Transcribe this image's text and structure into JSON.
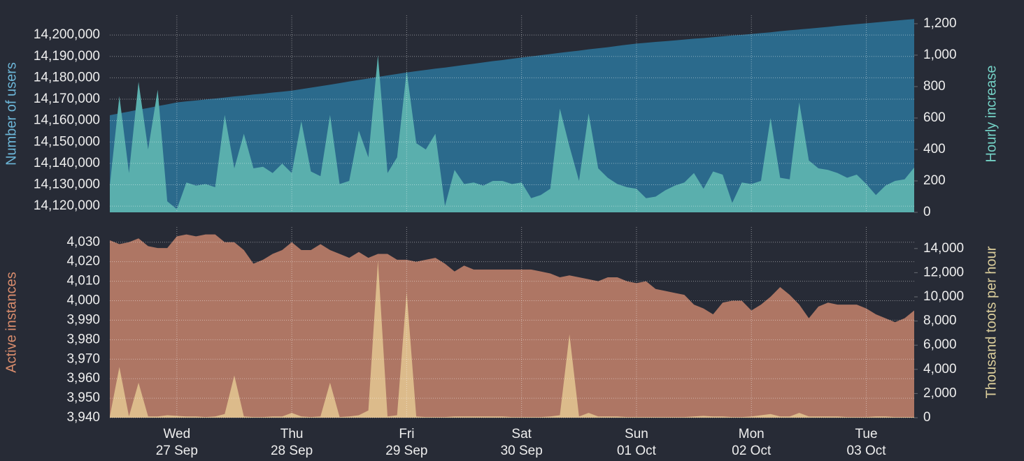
{
  "chart_data": [
    {
      "type": "area",
      "ylabel": "Number of users",
      "y2label": "Hourly increase",
      "ylim": [
        14117100,
        14209200
      ],
      "yticks": [
        {
          "value": 14120000,
          "label": "14,120,000"
        },
        {
          "value": 14130000,
          "label": "14,130,000"
        },
        {
          "value": 14140000,
          "label": "14,140,000"
        },
        {
          "value": 14150000,
          "label": "14,150,000"
        },
        {
          "value": 14160000,
          "label": "14,160,000"
        },
        {
          "value": 14170000,
          "label": "14,170,000"
        },
        {
          "value": 14180000,
          "label": "14,180,000"
        },
        {
          "value": 14190000,
          "label": "14,190,000"
        },
        {
          "value": 14200000,
          "label": "14,200,000"
        }
      ],
      "y2lim": [
        0,
        1253
      ],
      "y2ticks": [
        0,
        200,
        400,
        600,
        800,
        {
          "value": 1000,
          "label": "1,000"
        },
        {
          "value": 1200,
          "label": "1,200"
        }
      ],
      "grid": true,
      "ylabel_color": "#6cb6d8",
      "y2label_color": "#74d2c6",
      "series": [
        {
          "color": "#2b6a8c",
          "axis": "y",
          "values": [
            14162500,
            14163400,
            14164200,
            14165100,
            14165900,
            14166800,
            14167600,
            14168500,
            14169000,
            14169400,
            14169900,
            14170300,
            14170800,
            14171300,
            14171700,
            14172200,
            14172600,
            14173100,
            14173500,
            14174000,
            14174700,
            14175400,
            14176100,
            14176800,
            14177500,
            14178300,
            14179000,
            14179700,
            14180400,
            14181100,
            14181800,
            14182500,
            14183100,
            14183700,
            14184300,
            14184800,
            14185400,
            14186000,
            14186600,
            14187200,
            14187800,
            14188300,
            14188900,
            14189500,
            14190000,
            14190600,
            14191100,
            14191700,
            14192200,
            14192700,
            14193300,
            14193800,
            14194300,
            14194900,
            14195500,
            14196000,
            14196400,
            14196800,
            14197100,
            14197500,
            14197900,
            14198300,
            14198600,
            14199000,
            14199400,
            14199800,
            14200100,
            14200500,
            14200900,
            14201300,
            14201800,
            14202200,
            14202600,
            14203000,
            14203400,
            14203800,
            14204300,
            14204700,
            14205100,
            14205500,
            14205900,
            14206300,
            14206700,
            14207100,
            14207500
          ]
        },
        {
          "color": "#5aafad",
          "axis": "y2",
          "values": [
            170,
            740,
            250,
            830,
            400,
            780,
            70,
            20,
            190,
            170,
            180,
            160,
            620,
            280,
            500,
            280,
            290,
            250,
            310,
            250,
            580,
            260,
            230,
            620,
            180,
            200,
            520,
            350,
            1000,
            250,
            350,
            900,
            440,
            400,
            500,
            40,
            270,
            180,
            190,
            170,
            200,
            200,
            180,
            190,
            90,
            110,
            150,
            660,
            420,
            200,
            630,
            280,
            220,
            180,
            160,
            150,
            90,
            100,
            140,
            170,
            190,
            250,
            150,
            260,
            240,
            60,
            190,
            180,
            200,
            600,
            220,
            210,
            700,
            330,
            280,
            270,
            250,
            220,
            240,
            180,
            110,
            170,
            200,
            210,
            285
          ]
        }
      ]
    },
    {
      "type": "area",
      "ylabel": "Active instances",
      "y2label": "Thousand toots per hour",
      "ylim": [
        3940,
        4037.8
      ],
      "yticks": [
        {
          "value": 3940,
          "label": "3,940"
        },
        {
          "value": 3950,
          "label": "3,950"
        },
        {
          "value": 3960,
          "label": "3,960"
        },
        {
          "value": 3970,
          "label": "3,970"
        },
        {
          "value": 3980,
          "label": "3,980"
        },
        {
          "value": 3990,
          "label": "3,990"
        },
        {
          "value": 4000,
          "label": "4,000"
        },
        {
          "value": 4010,
          "label": "4,010"
        },
        {
          "value": 4020,
          "label": "4,020"
        },
        {
          "value": 4030,
          "label": "4,030"
        }
      ],
      "y2lim": [
        0,
        15780
      ],
      "y2ticks": [
        0,
        {
          "value": 2000,
          "label": "2,000"
        },
        {
          "value": 4000,
          "label": "4,000"
        },
        {
          "value": 6000,
          "label": "6,000"
        },
        {
          "value": 8000,
          "label": "8,000"
        },
        {
          "value": 10000,
          "label": "10,000"
        },
        {
          "value": 12000,
          "label": "12,000"
        },
        {
          "value": 14000,
          "label": "14,000"
        }
      ],
      "grid": true,
      "ylabel_color": "#da8d6d",
      "y2label_color": "#dccf9c",
      "categories": [
        null,
        null,
        null,
        null,
        null,
        null,
        null,
        "Wed\n27 Sep",
        null,
        null,
        null,
        null,
        null,
        null,
        null,
        null,
        null,
        null,
        null,
        "Thu\n28 Sep",
        null,
        null,
        null,
        null,
        null,
        null,
        null,
        null,
        null,
        null,
        null,
        "Fri\n29 Sep",
        null,
        null,
        null,
        null,
        null,
        null,
        null,
        null,
        null,
        null,
        null,
        "Sat\n30 Sep",
        null,
        null,
        null,
        null,
        null,
        null,
        null,
        null,
        null,
        null,
        null,
        "Sun\n01 Oct",
        null,
        null,
        null,
        null,
        null,
        null,
        null,
        null,
        null,
        null,
        null,
        "Mon\n02 Oct",
        null,
        null,
        null,
        null,
        null,
        null,
        null,
        null,
        null,
        null,
        null,
        "Tue\n03 Oct",
        null,
        null,
        null,
        null,
        null
      ],
      "series": [
        {
          "color": "#ae7664",
          "axis": "y",
          "values": [
            4031,
            4029,
            4030,
            4032,
            4028,
            4027,
            4027,
            4033,
            4034,
            4033,
            4034,
            4034,
            4030,
            4030,
            4026,
            4019,
            4021,
            4024,
            4026,
            4030,
            4026,
            4026,
            4029,
            4026,
            4024,
            4022,
            4025,
            4022,
            4024,
            4024,
            4021,
            4021,
            4020,
            4021,
            4022,
            4019,
            4015,
            4018,
            4016,
            4016,
            4016,
            4016,
            4016,
            4016,
            4016,
            4015,
            4014,
            4012,
            4013,
            4012,
            4011,
            4010,
            4012,
            4012,
            4010,
            4009,
            4010,
            4006,
            4005,
            4004,
            4003,
            3998,
            3996,
            3993,
            3999,
            4000,
            4000,
            3995,
            3998,
            4002,
            4007,
            4003,
            3998,
            3991,
            3997,
            3999,
            3998,
            3998,
            3998,
            3996,
            3993,
            3991,
            3989,
            3991,
            3995
          ]
        },
        {
          "color": "#dcbb8b",
          "axis": "y2",
          "values": [
            100,
            4200,
            100,
            2900,
            100,
            100,
            200,
            150,
            100,
            100,
            50,
            100,
            300,
            3500,
            100,
            50,
            50,
            100,
            100,
            400,
            100,
            50,
            100,
            2900,
            50,
            100,
            200,
            600,
            13000,
            100,
            200,
            10400,
            100,
            50,
            50,
            50,
            100,
            100,
            100,
            100,
            100,
            100,
            50,
            50,
            50,
            50,
            100,
            200,
            6900,
            100,
            400,
            100,
            100,
            100,
            50,
            50,
            50,
            50,
            50,
            50,
            50,
            100,
            150,
            100,
            100,
            50,
            50,
            100,
            200,
            300,
            100,
            100,
            400,
            100,
            100,
            100,
            100,
            50,
            50,
            50,
            100,
            100,
            50,
            50,
            50
          ]
        }
      ]
    }
  ]
}
